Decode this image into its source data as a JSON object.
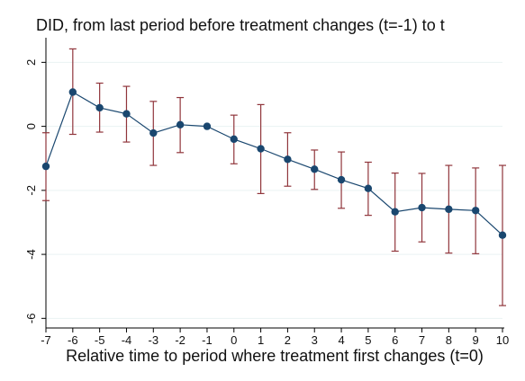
{
  "chart_data": {
    "type": "line",
    "title": "DID, from last period before treatment changes (t=-1) to t",
    "xlabel": "Relative time to period where treatment first changes (t=0)",
    "ylabel": "",
    "x": [
      -7,
      -6,
      -5,
      -4,
      -3,
      -2,
      -1,
      0,
      1,
      2,
      3,
      4,
      5,
      6,
      7,
      8,
      9,
      10
    ],
    "xticks": [
      "-7",
      "-6",
      "-5",
      "-4",
      "-3",
      "-2",
      "-1",
      "0",
      "1",
      "2",
      "3",
      "4",
      "5",
      "6",
      "7",
      "8",
      "9",
      "10"
    ],
    "xlim": [
      -7,
      10
    ],
    "ylim": [
      -6.3,
      2.6
    ],
    "yticks": [
      2,
      0,
      -2,
      -4,
      -6
    ],
    "ytick_labels": [
      "2",
      "0",
      "-2",
      "-4",
      "-6"
    ],
    "grid": true,
    "legend": "none",
    "series": [
      {
        "values": [
          -1.25,
          1.07,
          0.58,
          0.39,
          -0.21,
          0.05,
          0.0,
          -0.4,
          -0.7,
          -1.03,
          -1.34,
          -1.67,
          -1.94,
          -2.67,
          -2.54,
          -2.59,
          -2.63,
          -3.4
        ],
        "ci_low": [
          -2.32,
          -0.25,
          -0.18,
          -0.49,
          -1.22,
          -0.82,
          0.0,
          -1.17,
          -2.1,
          -1.87,
          -1.97,
          -2.56,
          -2.78,
          -3.9,
          -3.61,
          -3.96,
          -3.98,
          -5.6
        ],
        "ci_high": [
          -0.2,
          2.42,
          1.35,
          1.25,
          0.78,
          0.9,
          0.0,
          0.35,
          0.68,
          -0.2,
          -0.74,
          -0.8,
          -1.12,
          -1.46,
          -1.47,
          -1.22,
          -1.3,
          -1.22
        ]
      }
    ],
    "colors": {
      "line": "#1a476f",
      "marker": "#1a476f",
      "error_bar": "#90353b",
      "grid": "#eaf2f3",
      "axis": "#000000"
    }
  }
}
